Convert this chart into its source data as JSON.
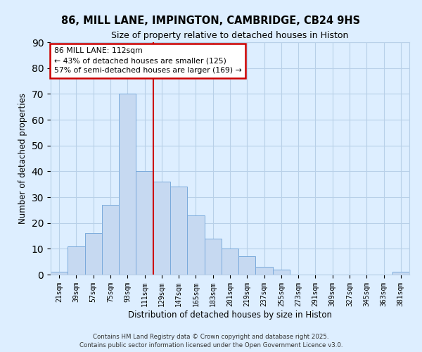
{
  "title": "86, MILL LANE, IMPINGTON, CAMBRIDGE, CB24 9HS",
  "subtitle": "Size of property relative to detached houses in Histon",
  "xlabel": "Distribution of detached houses by size in Histon",
  "ylabel": "Number of detached properties",
  "bin_labels": [
    "21sqm",
    "39sqm",
    "57sqm",
    "75sqm",
    "93sqm",
    "111sqm",
    "129sqm",
    "147sqm",
    "165sqm",
    "183sqm",
    "201sqm",
    "219sqm",
    "237sqm",
    "255sqm",
    "273sqm",
    "291sqm",
    "309sqm",
    "327sqm",
    "345sqm",
    "363sqm",
    "381sqm"
  ],
  "bar_heights": [
    1,
    11,
    16,
    27,
    70,
    40,
    36,
    34,
    23,
    14,
    10,
    7,
    3,
    2,
    0,
    0,
    0,
    0,
    0,
    0,
    1
  ],
  "bar_color": "#c6d9f1",
  "bar_edge_color": "#7aaadb",
  "vline_color": "#cc0000",
  "vline_bin": 5,
  "annotation_title": "86 MILL LANE: 112sqm",
  "annotation_line1": "← 43% of detached houses are smaller (125)",
  "annotation_line2": "57% of semi-detached houses are larger (169) →",
  "annotation_box_facecolor": "#ffffff",
  "annotation_box_edgecolor": "#cc0000",
  "ylim": [
    0,
    90
  ],
  "yticks": [
    0,
    10,
    20,
    30,
    40,
    50,
    60,
    70,
    80,
    90
  ],
  "grid_color": "#b8d0e8",
  "background_color": "#ddeeff",
  "footer_line1": "Contains HM Land Registry data © Crown copyright and database right 2025.",
  "footer_line2": "Contains public sector information licensed under the Open Government Licence v3.0."
}
